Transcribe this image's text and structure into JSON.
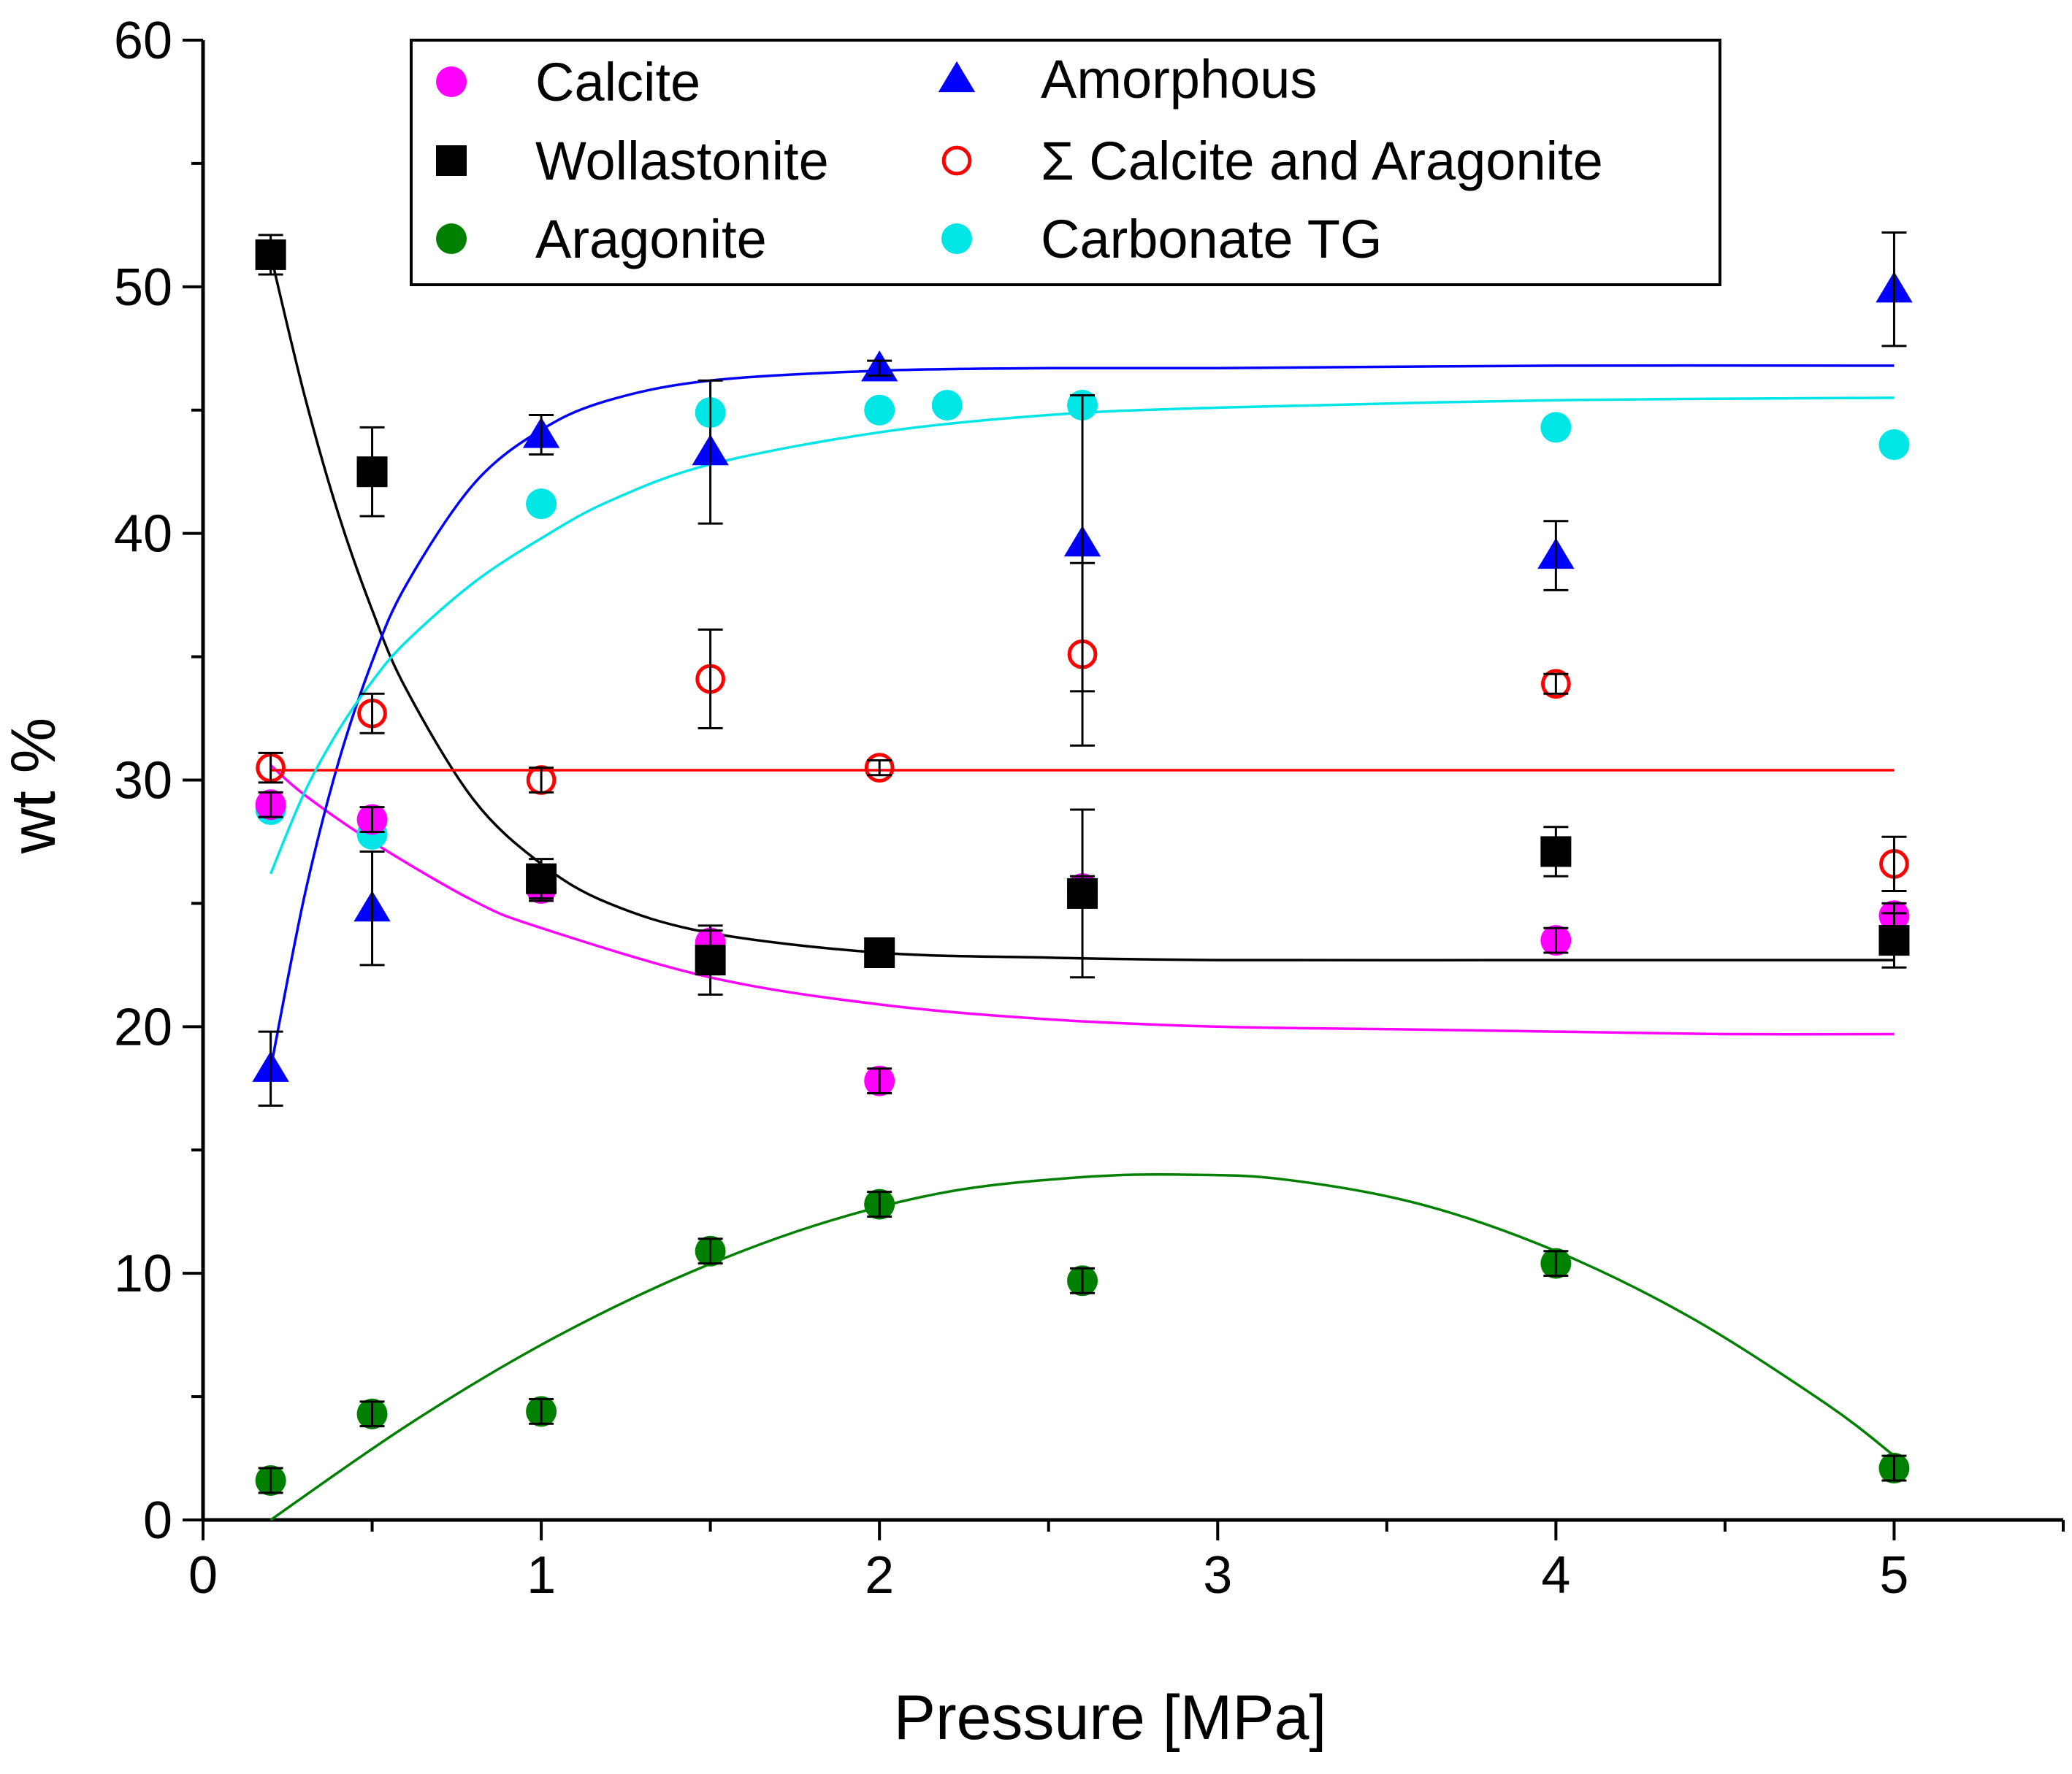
{
  "chart_data": {
    "type": "scatter",
    "title": "",
    "xlabel": "Pressure [MPa]",
    "ylabel": "wt %",
    "xlim": [
      0,
      5.5
    ],
    "ylim": [
      0,
      60
    ],
    "xticks": [
      0,
      1,
      2,
      3,
      4,
      5
    ],
    "yticks": [
      0,
      10,
      20,
      30,
      40,
      50,
      60
    ],
    "legend_position": "top",
    "series": [
      {
        "name": "Calcite",
        "marker": "circle",
        "filled": true,
        "color": "#ff00ff",
        "x": [
          0.2,
          0.5,
          1.0,
          1.5,
          2.0,
          2.6,
          4.0,
          5.0
        ],
        "y": [
          29.0,
          28.4,
          25.6,
          23.4,
          17.8,
          25.6,
          23.5,
          24.5
        ],
        "err": [
          0.5,
          0.5,
          0.5,
          0.5,
          0.5,
          0.5,
          0.5,
          0.5
        ]
      },
      {
        "name": "Wollastonite",
        "marker": "square",
        "filled": true,
        "color": "#000000",
        "x": [
          0.2,
          0.5,
          1.0,
          1.5,
          2.0,
          2.6,
          4.0,
          5.0
        ],
        "y": [
          51.3,
          42.5,
          26.0,
          22.7,
          23.0,
          25.4,
          27.1,
          23.5
        ],
        "err": [
          0.8,
          1.8,
          0.8,
          1.4,
          0.4,
          3.4,
          1.0,
          1.1
        ]
      },
      {
        "name": "Aragonite",
        "marker": "circle",
        "filled": true,
        "color": "#008000",
        "x": [
          0.2,
          0.5,
          1.0,
          1.5,
          2.0,
          2.6,
          4.0,
          5.0
        ],
        "y": [
          1.6,
          4.3,
          4.4,
          10.9,
          12.8,
          9.7,
          10.4,
          2.1
        ],
        "err": [
          0.5,
          0.5,
          0.5,
          0.5,
          0.5,
          0.5,
          0.5,
          0.5
        ]
      },
      {
        "name": "Amorphous",
        "marker": "triangle",
        "filled": true,
        "color": "#0000ff",
        "x": [
          0.2,
          0.5,
          1.0,
          1.5,
          2.0,
          2.6,
          4.0,
          5.0
        ],
        "y": [
          18.3,
          24.8,
          44.0,
          43.3,
          46.7,
          39.6,
          39.1,
          49.9
        ],
        "err": [
          1.5,
          2.3,
          0.8,
          2.9,
          0.3,
          6.0,
          1.4,
          2.3
        ]
      },
      {
        "name": "Σ Calcite and Aragonite",
        "marker": "circle",
        "filled": false,
        "color": "#ff0000",
        "x": [
          0.2,
          0.5,
          1.0,
          1.5,
          2.0,
          2.6,
          4.0,
          5.0
        ],
        "y": [
          30.5,
          32.7,
          30.0,
          34.1,
          30.5,
          35.1,
          33.9,
          26.6
        ],
        "err": [
          0.6,
          0.8,
          0.5,
          2.0,
          0.3,
          3.7,
          0.4,
          1.1
        ]
      },
      {
        "name": "Carbonate TG",
        "marker": "circle",
        "filled": true,
        "color": "#00e5e5",
        "x": [
          0.2,
          0.5,
          1.0,
          1.5,
          2.0,
          2.2,
          2.6,
          4.0,
          5.0
        ],
        "y": [
          28.8,
          27.8,
          41.2,
          44.9,
          45.0,
          45.2,
          45.2,
          44.3,
          43.6
        ],
        "err": []
      }
    ],
    "fit_curves": [
      {
        "series": "Calcite",
        "color": "#ff00ff",
        "x": [
          0.2,
          0.3,
          0.5,
          0.8,
          1.0,
          1.5,
          2.0,
          2.5,
          3.0,
          3.5,
          4.0,
          4.5,
          5.0
        ],
        "y": [
          30.6,
          29.4,
          27.5,
          25.1,
          24.0,
          22.0,
          20.9,
          20.3,
          20.0,
          19.9,
          19.8,
          19.7,
          19.7
        ]
      },
      {
        "series": "Wollastonite",
        "color": "#000000",
        "x": [
          0.2,
          0.3,
          0.4,
          0.5,
          0.6,
          0.8,
          1.0,
          1.2,
          1.5,
          2.0,
          2.5,
          3.0,
          4.0,
          5.0
        ],
        "y": [
          51.3,
          45.6,
          40.8,
          36.9,
          33.7,
          29.2,
          26.6,
          25.0,
          23.8,
          23.0,
          22.8,
          22.7,
          22.7,
          22.7
        ]
      },
      {
        "series": "Aragonite",
        "color": "#008000",
        "x": [
          0.2,
          0.6,
          1.0,
          1.4,
          1.8,
          2.2,
          2.6,
          2.9,
          3.2,
          3.6,
          4.0,
          4.4,
          4.8,
          5.0
        ],
        "y": [
          0.0,
          3.8,
          7.1,
          9.8,
          11.9,
          13.3,
          13.9,
          14.0,
          13.8,
          12.8,
          10.9,
          8.2,
          4.7,
          2.6
        ]
      },
      {
        "series": "Amorphous",
        "color": "#0000ff",
        "x": [
          0.2,
          0.3,
          0.4,
          0.5,
          0.6,
          0.8,
          1.0,
          1.2,
          1.5,
          2.0,
          2.5,
          3.0,
          4.0,
          5.0
        ],
        "y": [
          18.3,
          25.3,
          30.7,
          34.8,
          37.9,
          42.0,
          44.2,
          45.4,
          46.2,
          46.6,
          46.7,
          46.7,
          46.8,
          46.8
        ]
      },
      {
        "series": "Σ Calcite and Aragonite",
        "color": "#ff0000",
        "x": [
          0.2,
          5.0
        ],
        "y": [
          30.4,
          30.4
        ]
      },
      {
        "series": "Carbonate TG",
        "color": "#00e5e5",
        "x": [
          0.2,
          0.3,
          0.4,
          0.5,
          0.6,
          0.8,
          1.0,
          1.2,
          1.5,
          2.0,
          2.5,
          3.0,
          4.0,
          5.0
        ],
        "y": [
          26.2,
          29.5,
          32.0,
          34.0,
          35.6,
          38.0,
          39.8,
          41.3,
          42.8,
          44.1,
          44.8,
          45.1,
          45.4,
          45.5
        ]
      }
    ]
  }
}
